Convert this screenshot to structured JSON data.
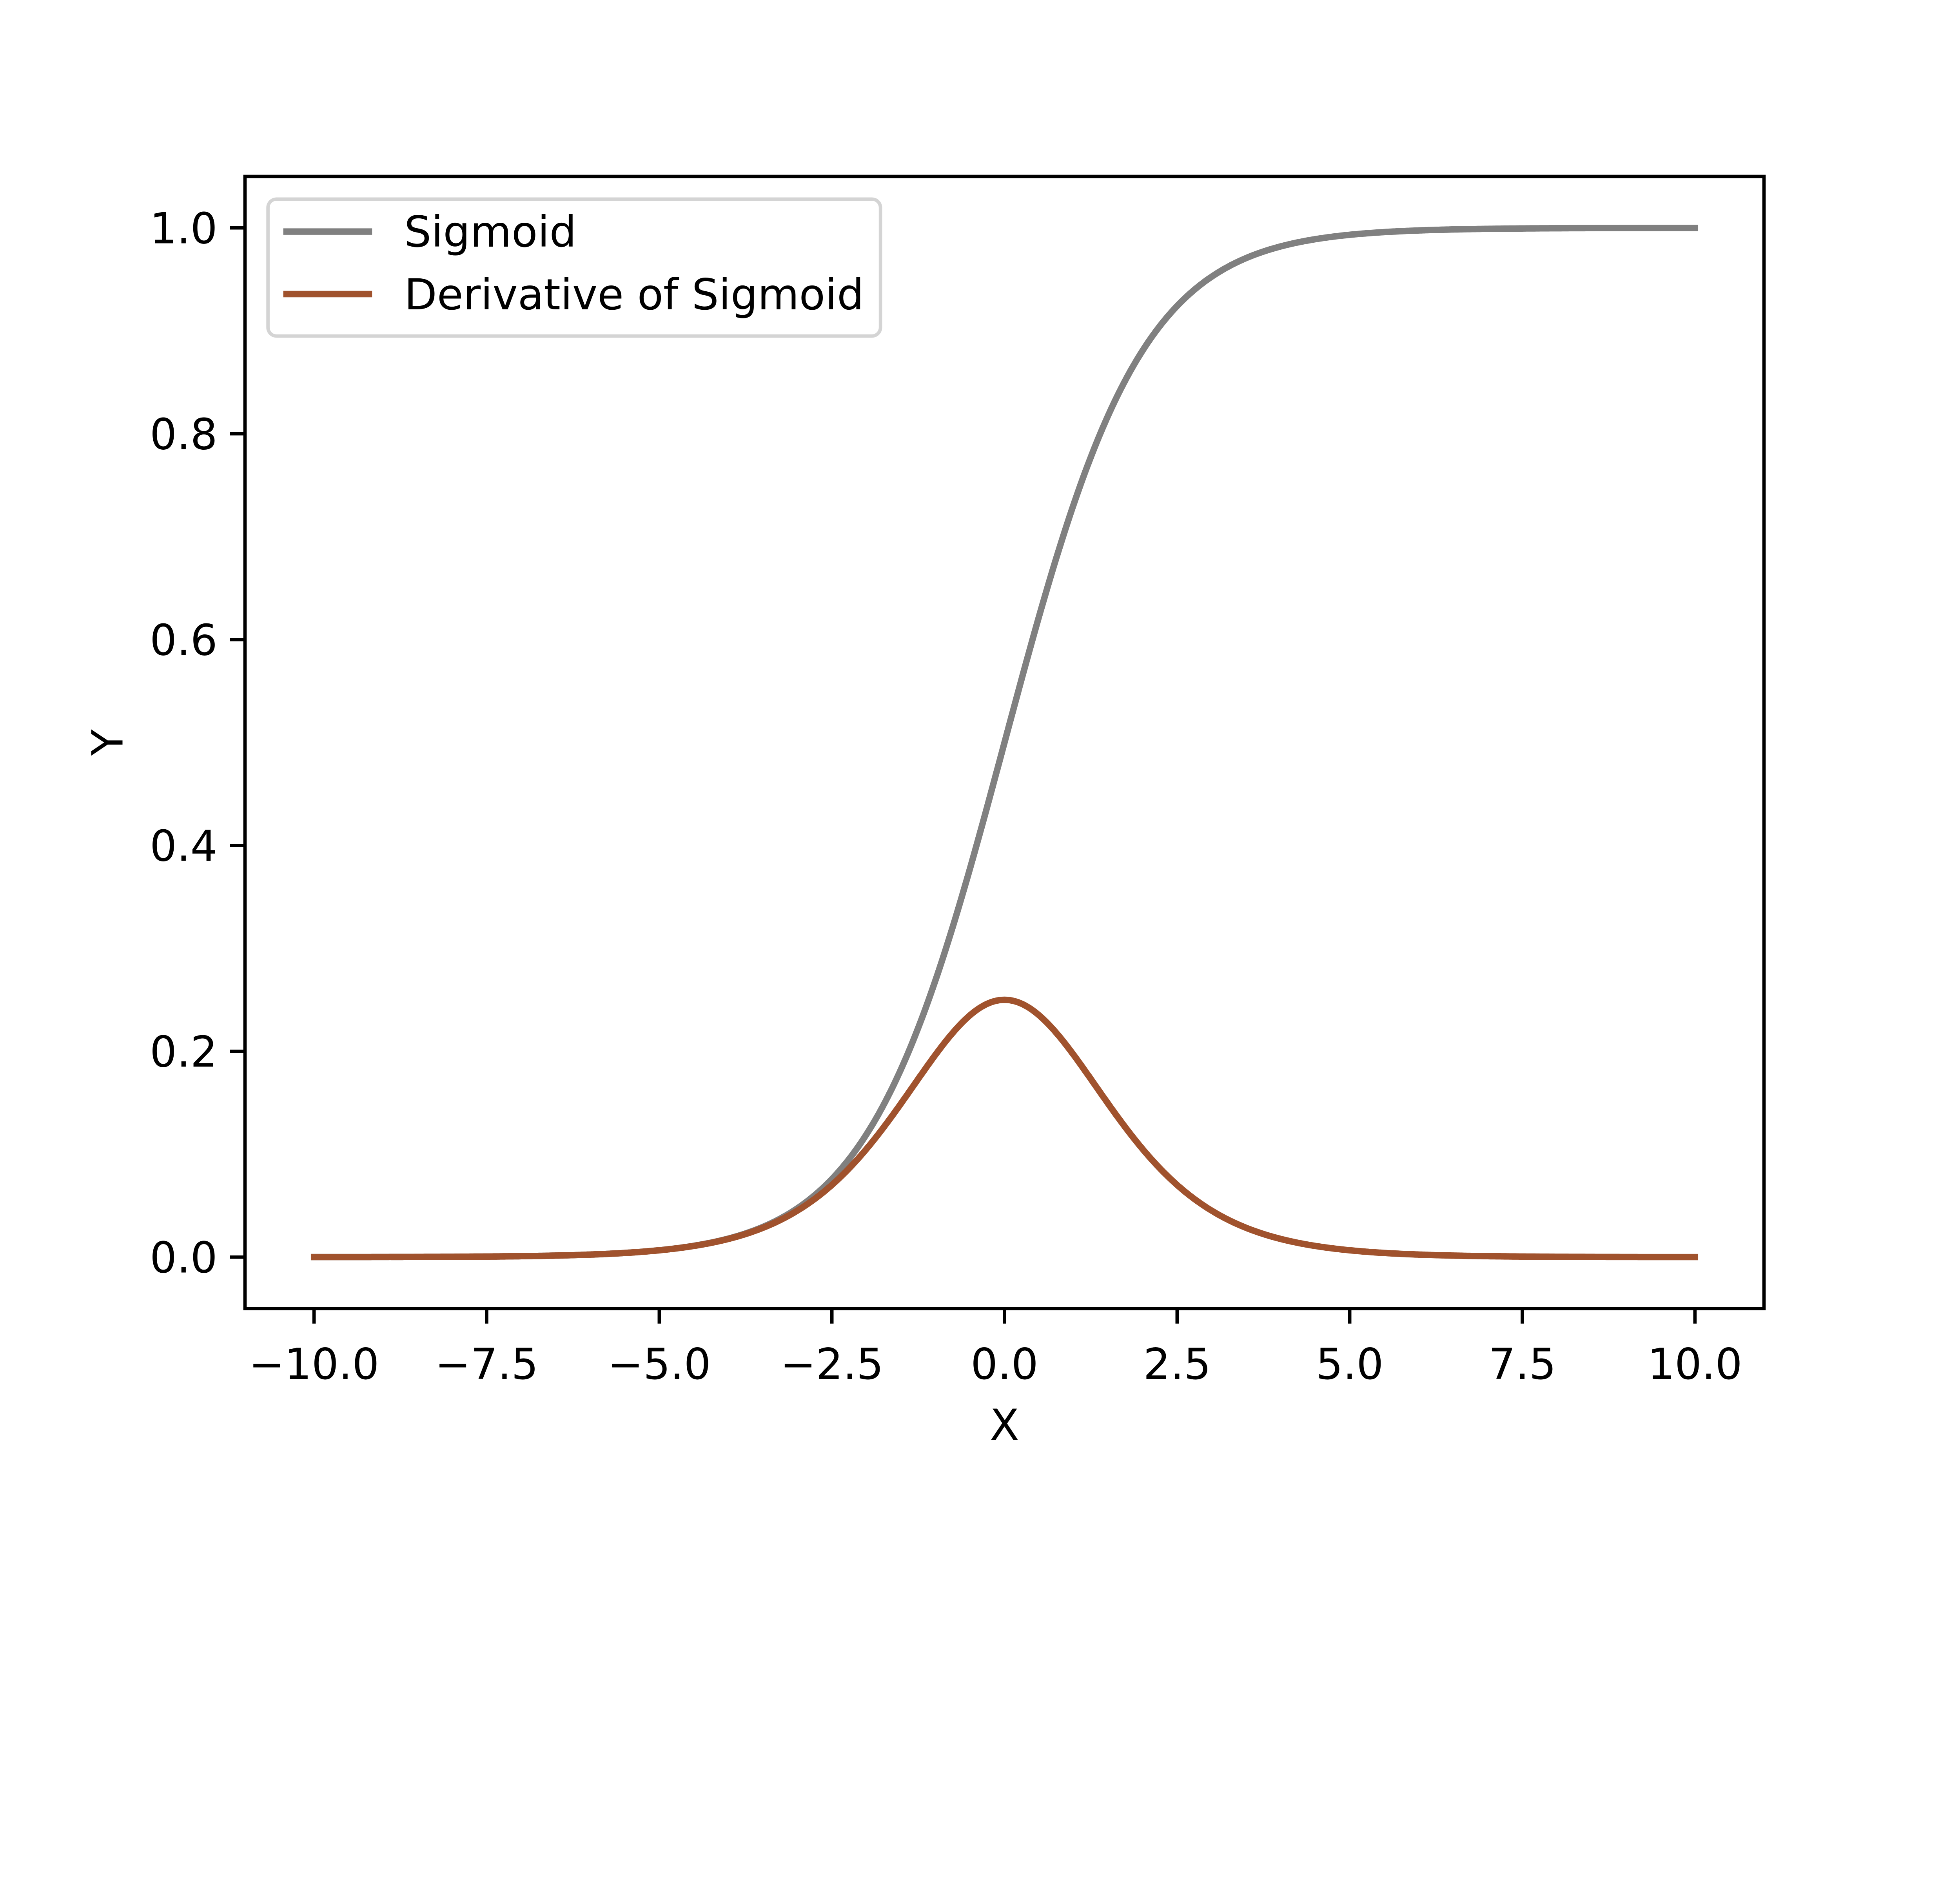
{
  "chart_data": {
    "type": "line",
    "title": "",
    "xlabel": "X",
    "ylabel": "Y",
    "xlim": [
      -11,
      11
    ],
    "ylim": [
      -0.05,
      1.05
    ],
    "xticks": [
      -10,
      -7.5,
      -5,
      -2.5,
      0,
      2.5,
      5,
      7.5,
      10
    ],
    "xtick_labels": [
      "−10.0",
      "−7.5",
      "−5.0",
      "−2.5",
      "0.0",
      "2.5",
      "5.0",
      "7.5",
      "10.0"
    ],
    "yticks": [
      0,
      0.2,
      0.4,
      0.6,
      0.8,
      1.0
    ],
    "ytick_labels": [
      "0.0",
      "0.2",
      "0.4",
      "0.6",
      "0.8",
      "1.0"
    ],
    "grid": false,
    "legend_position": "top-left",
    "x_range": [
      -10,
      10
    ],
    "series": [
      {
        "name": "Sigmoid",
        "function": "1/(1+exp(-x))",
        "color": "#808080"
      },
      {
        "name": "Derivative of Sigmoid",
        "function": "s(x)*(1-s(x))",
        "color": "#a0522d"
      }
    ]
  }
}
